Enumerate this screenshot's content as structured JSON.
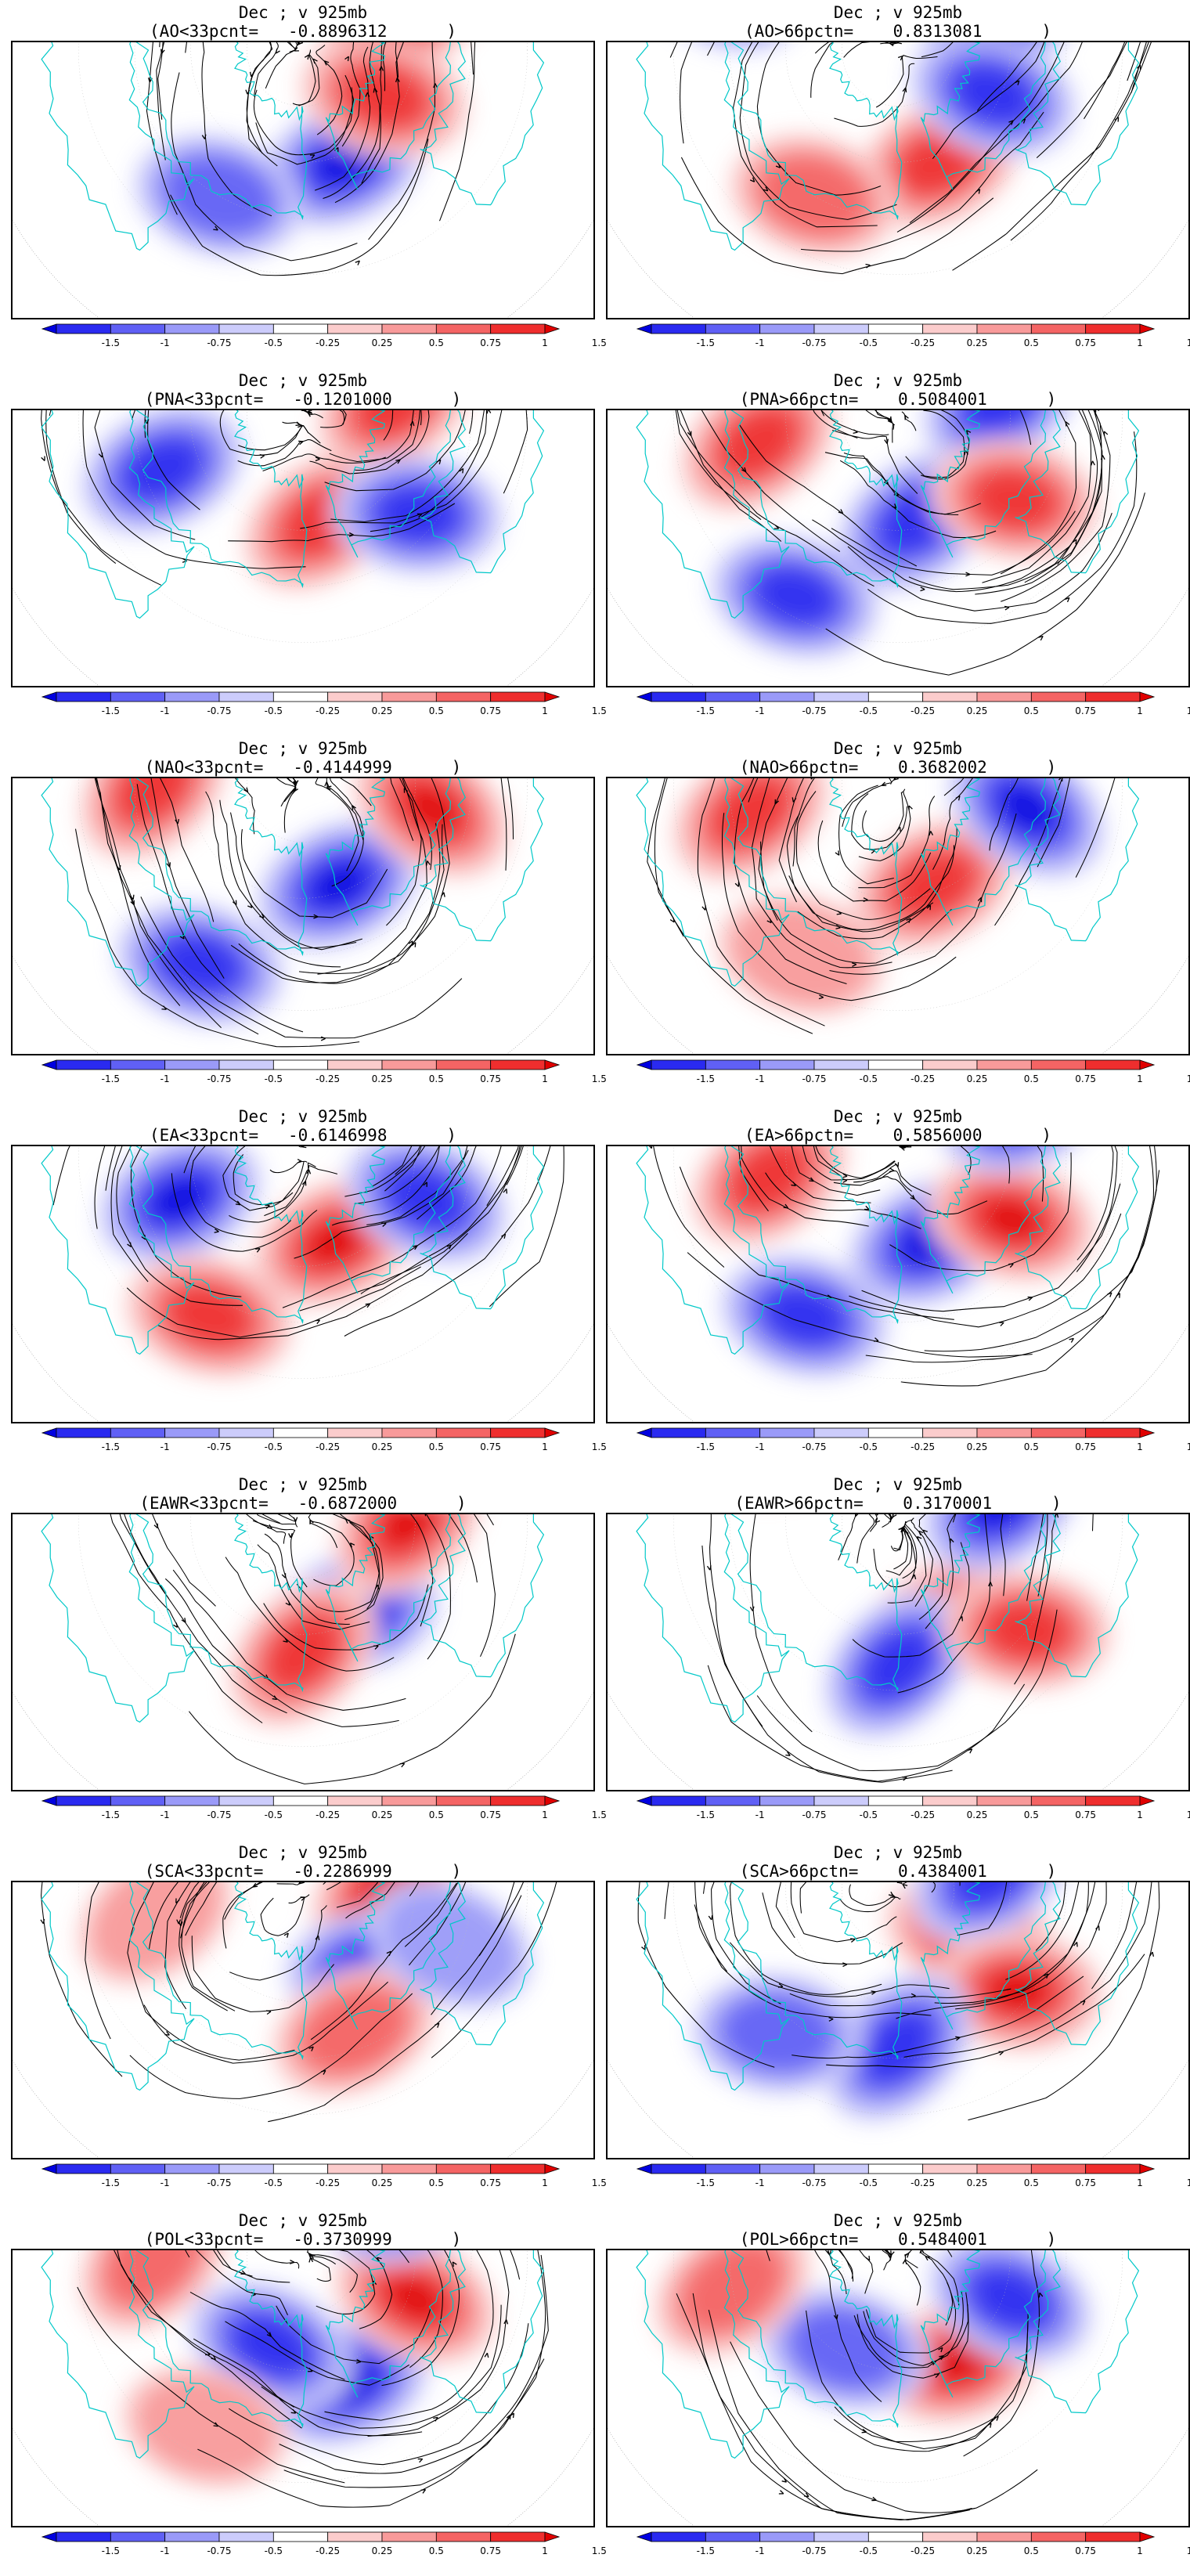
{
  "figure": {
    "panels": [
      {
        "title_line1": "Dec ; v 925mb",
        "title_line2": "(AO<33pcnt=   -0.8896312      )",
        "anomalies": [
          {
            "lon": 200,
            "lat": 58,
            "val": -1.5
          },
          {
            "lon": 290,
            "lat": 62,
            "val": 1.3
          },
          {
            "lon": 240,
            "lat": 65,
            "val": 1.1
          },
          {
            "lon": 60,
            "lat": 40,
            "val": 0.9
          },
          {
            "lon": 150,
            "lat": 45,
            "val": -0.8
          },
          {
            "lon": 320,
            "lat": 35,
            "val": 0.7
          }
        ]
      },
      {
        "title_line1": "Dec ; v 925mb",
        "title_line2": "(AO>66pctn=    0.8313081      )",
        "anomalies": [
          {
            "lon": 200,
            "lat": 58,
            "val": 1.3
          },
          {
            "lon": 290,
            "lat": 60,
            "val": -1.5
          },
          {
            "lon": 245,
            "lat": 62,
            "val": -1.0
          },
          {
            "lon": 70,
            "lat": 40,
            "val": -0.9
          },
          {
            "lon": 150,
            "lat": 45,
            "val": 0.8
          },
          {
            "lon": 320,
            "lat": 35,
            "val": -0.6
          }
        ]
      },
      {
        "title_line1": "Dec ; v 925mb",
        "title_line2": "(PNA<33pcnt=   -0.1201000      )",
        "anomalies": [
          {
            "lon": 190,
            "lat": 62,
            "val": 1.1
          },
          {
            "lon": 280,
            "lat": 65,
            "val": 1.2
          },
          {
            "lon": 110,
            "lat": 50,
            "val": -1.1
          },
          {
            "lon": 230,
            "lat": 50,
            "val": -1.2
          },
          {
            "lon": 330,
            "lat": 40,
            "val": 0.6
          },
          {
            "lon": 40,
            "lat": 35,
            "val": -0.5
          }
        ]
      },
      {
        "title_line1": "Dec ; v 925mb",
        "title_line2": "(PNA>66pctn=    0.5084001      )",
        "anomalies": [
          {
            "lon": 190,
            "lat": 62,
            "val": -1.2
          },
          {
            "lon": 280,
            "lat": 62,
            "val": -1.3
          },
          {
            "lon": 100,
            "lat": 52,
            "val": 1.2
          },
          {
            "lon": 235,
            "lat": 52,
            "val": 1.3
          },
          {
            "lon": 150,
            "lat": 35,
            "val": -1.1
          },
          {
            "lon": 330,
            "lat": 42,
            "val": 0.7
          }
        ]
      },
      {
        "title_line1": "Dec ; v 925mb",
        "title_line2": "(NAO<33pcnt=   -0.4144999      )",
        "anomalies": [
          {
            "lon": 200,
            "lat": 62,
            "val": -1.4
          },
          {
            "lon": 260,
            "lat": 55,
            "val": 1.5
          },
          {
            "lon": 90,
            "lat": 50,
            "val": 1.1
          },
          {
            "lon": 150,
            "lat": 35,
            "val": -0.9
          },
          {
            "lon": 310,
            "lat": 45,
            "val": 0.8
          },
          {
            "lon": 20,
            "lat": 40,
            "val": -0.5
          }
        ]
      },
      {
        "title_line1": "Dec ; v 925mb",
        "title_line2": "(NAO>66pctn=    0.3682002      )",
        "anomalies": [
          {
            "lon": 200,
            "lat": 62,
            "val": 1.0
          },
          {
            "lon": 260,
            "lat": 55,
            "val": -1.5
          },
          {
            "lon": 100,
            "lat": 50,
            "val": 1.2
          },
          {
            "lon": 320,
            "lat": 45,
            "val": -0.9
          },
          {
            "lon": 60,
            "lat": 40,
            "val": -0.6
          },
          {
            "lon": 150,
            "lat": 38,
            "val": 0.5
          }
        ]
      },
      {
        "title_line1": "Dec ; v 925mb",
        "title_line2": "(EA<33pcnt=   -0.6146998      )",
        "anomalies": [
          {
            "lon": 200,
            "lat": 65,
            "val": 1.5
          },
          {
            "lon": 250,
            "lat": 55,
            "val": -1.2
          },
          {
            "lon": 110,
            "lat": 55,
            "val": -1.4
          },
          {
            "lon": 150,
            "lat": 40,
            "val": 1.0
          },
          {
            "lon": 40,
            "lat": 45,
            "val": -0.7
          },
          {
            "lon": 300,
            "lat": 40,
            "val": 0.6
          }
        ]
      },
      {
        "title_line1": "Dec ; v 925mb",
        "title_line2": "(EA>66pctn=    0.5856000      )",
        "anomalies": [
          {
            "lon": 200,
            "lat": 65,
            "val": -1.4
          },
          {
            "lon": 240,
            "lat": 55,
            "val": 1.5
          },
          {
            "lon": 100,
            "lat": 55,
            "val": 1.3
          },
          {
            "lon": 150,
            "lat": 40,
            "val": -1.0
          },
          {
            "lon": 290,
            "lat": 55,
            "val": -1.1
          },
          {
            "lon": 40,
            "lat": 45,
            "val": 0.6
          }
        ]
      },
      {
        "title_line1": "Dec ; v 925mb",
        "title_line2": "(EAWR<33pcnt=   -0.6872000      )",
        "anomalies": [
          {
            "lon": 210,
            "lat": 62,
            "val": -1.5
          },
          {
            "lon": 270,
            "lat": 62,
            "val": 1.5
          },
          {
            "lon": 180,
            "lat": 55,
            "val": 1.2
          },
          {
            "lon": 300,
            "lat": 45,
            "val": 0.9
          },
          {
            "lon": 320,
            "lat": 55,
            "val": -0.8
          },
          {
            "lon": 40,
            "lat": 45,
            "val": 0.5
          }
        ]
      },
      {
        "title_line1": "Dec ; v 925mb",
        "title_line2": "(EAWR>66pctn=    0.3170001      )",
        "anomalies": [
          {
            "lon": 210,
            "lat": 60,
            "val": 1.5
          },
          {
            "lon": 280,
            "lat": 62,
            "val": -1.5
          },
          {
            "lon": 180,
            "lat": 52,
            "val": -1.0
          },
          {
            "lon": 230,
            "lat": 45,
            "val": 1.1
          },
          {
            "lon": 330,
            "lat": 50,
            "val": 0.8
          },
          {
            "lon": 60,
            "lat": 45,
            "val": 0.6
          }
        ]
      },
      {
        "title_line1": "Dec ; v 925mb",
        "title_line2": "(SCA<33pcnt=   -0.2286999      )",
        "anomalies": [
          {
            "lon": 270,
            "lat": 68,
            "val": 1.4
          },
          {
            "lon": 220,
            "lat": 62,
            "val": -1.1
          },
          {
            "lon": 200,
            "lat": 50,
            "val": 0.8
          },
          {
            "lon": 250,
            "lat": 48,
            "val": -0.6
          },
          {
            "lon": 100,
            "lat": 50,
            "val": 0.5
          },
          {
            "lon": 330,
            "lat": 45,
            "val": 0.5
          }
        ]
      },
      {
        "title_line1": "Dec ; v 925mb",
        "title_line2": "(SCA>66pctn=    0.4384001      )",
        "anomalies": [
          {
            "lon": 240,
            "lat": 68,
            "val": 1.5
          },
          {
            "lon": 280,
            "lat": 65,
            "val": -1.2
          },
          {
            "lon": 230,
            "lat": 48,
            "val": 1.4
          },
          {
            "lon": 180,
            "lat": 48,
            "val": -1.0
          },
          {
            "lon": 140,
            "lat": 40,
            "val": -0.8
          },
          {
            "lon": 30,
            "lat": 45,
            "val": 0.5
          }
        ]
      },
      {
        "title_line1": "Dec ; v 925mb",
        "title_line2": "(POL<33pcnt=   -0.3730999      )",
        "anomalies": [
          {
            "lon": 200,
            "lat": 55,
            "val": -1.5
          },
          {
            "lon": 250,
            "lat": 58,
            "val": 1.4
          },
          {
            "lon": 160,
            "lat": 65,
            "val": -1.0
          },
          {
            "lon": 90,
            "lat": 50,
            "val": 0.7
          },
          {
            "lon": 300,
            "lat": 60,
            "val": -0.7
          },
          {
            "lon": 150,
            "lat": 38,
            "val": 0.5
          }
        ]
      },
      {
        "title_line1": "Dec ; v 925mb",
        "title_line2": "(POL>66pctn=    0.5484001      )",
        "anomalies": [
          {
            "lon": 210,
            "lat": 58,
            "val": 1.5
          },
          {
            "lon": 250,
            "lat": 58,
            "val": -1.3
          },
          {
            "lon": 150,
            "lat": 62,
            "val": -0.8
          },
          {
            "lon": 310,
            "lat": 55,
            "val": 1.0
          },
          {
            "lon": 100,
            "lat": 45,
            "val": 0.8
          },
          {
            "lon": 330,
            "lat": 40,
            "val": 0.6
          }
        ]
      }
    ],
    "colorbar": {
      "tick_labels": [
        "-1.5",
        "-1",
        "-0.75",
        "-0.5",
        "-0.25",
        "0.25",
        "0.5",
        "0.75",
        "1",
        "1.5"
      ],
      "levels": [
        -1.5,
        -1,
        -0.75,
        -0.5,
        -0.25,
        0.25,
        0.5,
        0.75,
        1,
        1.5
      ],
      "colors": [
        "#0000e0",
        "#2a2af0",
        "#6060f5",
        "#9a9af8",
        "#ccccfb",
        "#ffffff",
        "#fbcccc",
        "#f89a9a",
        "#f46464",
        "#ef2e2e",
        "#e00000"
      ]
    },
    "style": {
      "coast_color": "#00c8c8",
      "stream_color": "#000000"
    }
  }
}
